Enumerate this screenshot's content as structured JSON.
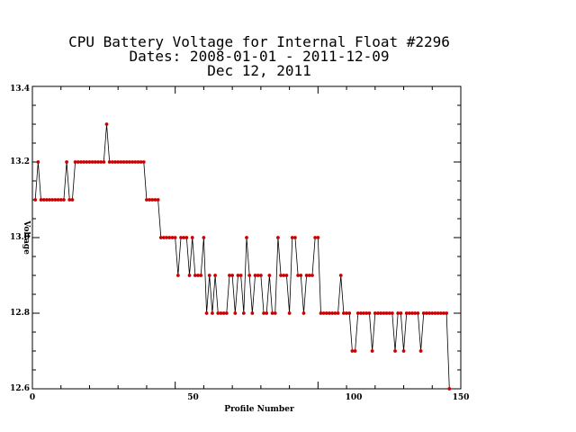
{
  "chart_data": {
    "type": "line",
    "title_lines": [
      "CPU Battery Voltage for Internal Float #2296",
      "Dates:  2008-01-01 -  2011-12-09",
      "Dec 12, 2011"
    ],
    "xlabel": "Profile Number",
    "ylabel": "Voltage",
    "xlim": [
      0,
      150
    ],
    "ylim": [
      12.6,
      13.4
    ],
    "xticks": [
      0,
      50,
      100,
      150
    ],
    "yticks": [
      "12.6",
      "12.8",
      "13.0",
      "13.2",
      "13.4"
    ],
    "line_color": "#000000",
    "marker_color": "#cc0000",
    "grid": false,
    "series": [
      {
        "x": [
          1,
          2,
          3,
          4,
          5,
          6,
          7,
          8,
          9,
          10,
          11,
          12,
          13,
          14,
          15,
          16,
          17,
          18,
          19,
          20,
          21,
          22,
          23,
          24,
          25,
          26,
          27,
          28,
          29,
          30,
          31,
          32,
          33,
          34,
          35,
          36,
          37,
          38,
          39,
          40,
          41,
          42,
          43,
          44,
          45,
          46,
          47,
          48,
          49,
          50,
          51,
          52,
          53,
          54,
          55,
          56,
          57,
          58,
          59,
          60,
          61,
          62,
          63,
          64,
          65,
          66,
          67,
          68,
          69,
          70,
          71,
          72,
          73,
          74,
          75,
          76,
          77,
          78,
          79,
          80,
          81,
          82,
          83,
          84,
          85,
          86,
          87,
          88,
          89,
          90,
          91,
          92,
          93,
          94,
          95,
          96,
          97,
          98,
          99,
          100,
          101,
          102,
          103,
          104,
          105,
          106,
          107,
          108,
          109,
          110,
          111,
          112,
          113,
          114,
          115,
          116,
          117,
          118,
          119,
          120,
          121,
          122,
          123,
          124,
          125,
          126,
          127,
          128,
          129,
          130,
          131,
          132,
          133,
          134,
          135,
          136,
          137,
          138,
          139,
          140,
          141,
          142,
          143,
          144,
          145,
          146
        ],
        "y": [
          13.1,
          13.2,
          13.1,
          13.1,
          13.1,
          13.1,
          13.1,
          13.1,
          13.1,
          13.1,
          13.1,
          13.2,
          13.1,
          13.1,
          13.2,
          13.2,
          13.2,
          13.2,
          13.2,
          13.2,
          13.2,
          13.2,
          13.2,
          13.2,
          13.2,
          13.3,
          13.2,
          13.2,
          13.2,
          13.2,
          13.2,
          13.2,
          13.2,
          13.2,
          13.2,
          13.2,
          13.2,
          13.2,
          13.2,
          13.1,
          13.1,
          13.1,
          13.1,
          13.1,
          13.0,
          13.0,
          13.0,
          13.0,
          13.0,
          13.0,
          12.9,
          13.0,
          13.0,
          13.0,
          12.9,
          13.0,
          12.9,
          12.9,
          12.9,
          13.0,
          12.8,
          12.9,
          12.8,
          12.9,
          12.8,
          12.8,
          12.8,
          12.8,
          12.9,
          12.9,
          12.8,
          12.9,
          12.9,
          12.8,
          13.0,
          12.9,
          12.8,
          12.9,
          12.9,
          12.9,
          12.8,
          12.8,
          12.9,
          12.8,
          12.8,
          13.0,
          12.9,
          12.9,
          12.9,
          12.8,
          13.0,
          13.0,
          12.9,
          12.9,
          12.8,
          12.9,
          12.9,
          12.9,
          13.0,
          13.0,
          12.8,
          12.8,
          12.8,
          12.8,
          12.8,
          12.8,
          12.8,
          12.9,
          12.8,
          12.8,
          12.8,
          12.7,
          12.7,
          12.8,
          12.8,
          12.8,
          12.8,
          12.8,
          12.7,
          12.8,
          12.8,
          12.8,
          12.8,
          12.8,
          12.8,
          12.8,
          12.7,
          12.8,
          12.8,
          12.7,
          12.8,
          12.8,
          12.8,
          12.8,
          12.8,
          12.7,
          12.8,
          12.8,
          12.8,
          12.8,
          12.8,
          12.8,
          12.8,
          12.8,
          12.8,
          12.6
        ]
      }
    ]
  }
}
